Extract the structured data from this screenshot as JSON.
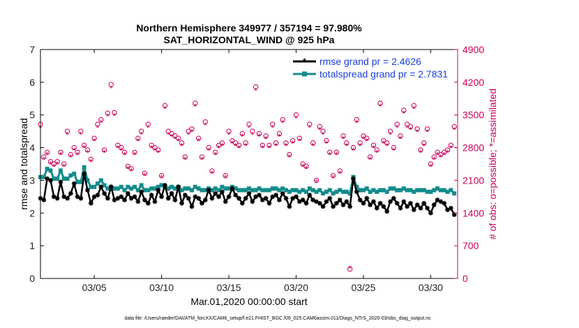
{
  "chart_data": {
    "type": "line",
    "title": "Northern Hemisphere 349977 / 357194 = 97.980%",
    "subtitle": "SAT_HORIZONTAL_WIND @ 925 hPa",
    "xlabel": "Mar.01,2020 00:00:00 start",
    "ylabel": "rmse and totalspread",
    "ylabel_right": "# of obs: o=possible; *=assimilated",
    "footnote": "data file: /Users/raeder/DAI/ATM_forcXX/CAM6_setup/f.e21.FHIST_BGC.f09_025.CAM6assim.011/Diags_NTrS_2020-03/obs_diag_output.nc",
    "xlim": [
      1,
      32
    ],
    "ylim": [
      0,
      7
    ],
    "ylim_right": [
      0,
      4900
    ],
    "xtick_values": [
      5,
      10,
      15,
      20,
      25,
      30
    ],
    "xtick_labels": [
      "03/05",
      "03/10",
      "03/15",
      "03/20",
      "03/25",
      "03/30"
    ],
    "ytick_labels": [
      "0",
      "1",
      "2",
      "3",
      "4",
      "5",
      "6",
      "7"
    ],
    "ytick_right_labels": [
      "0",
      "700",
      "1400",
      "2100",
      "2800",
      "3500",
      "4200",
      "4900"
    ],
    "legend_position": "top-right",
    "colors": {
      "rmse": "#000000",
      "spread": "#148c8c",
      "obs": "#c8005a",
      "legend_text": "#1a3fd6"
    },
    "series": [
      {
        "name": "rmse grand pr = 2.4626",
        "x": [
          1.0,
          1.25,
          1.5,
          1.75,
          2.0,
          2.25,
          2.5,
          2.75,
          3.0,
          3.25,
          3.5,
          3.75,
          4.0,
          4.25,
          4.5,
          4.75,
          5.0,
          5.25,
          5.5,
          5.75,
          6.0,
          6.25,
          6.5,
          6.75,
          7.0,
          7.25,
          7.5,
          7.75,
          8.0,
          8.25,
          8.5,
          8.75,
          9.0,
          9.25,
          9.5,
          9.75,
          10.0,
          10.25,
          10.5,
          10.75,
          11.0,
          11.25,
          11.5,
          11.75,
          12.0,
          12.25,
          12.5,
          12.75,
          13.0,
          13.25,
          13.5,
          13.75,
          14.0,
          14.25,
          14.5,
          14.75,
          15.0,
          15.25,
          15.5,
          15.75,
          16.0,
          16.25,
          16.5,
          16.75,
          17.0,
          17.25,
          17.5,
          17.75,
          18.0,
          18.25,
          18.5,
          18.75,
          19.0,
          19.25,
          19.5,
          19.75,
          20.0,
          20.25,
          20.5,
          20.75,
          21.0,
          21.25,
          21.5,
          21.75,
          22.0,
          22.25,
          22.5,
          22.75,
          23.0,
          23.25,
          23.5,
          23.75,
          24.0,
          24.25,
          24.5,
          24.75,
          25.0,
          25.25,
          25.5,
          25.75,
          26.0,
          26.25,
          26.5,
          26.75,
          27.0,
          27.25,
          27.5,
          27.75,
          28.0,
          28.25,
          28.5,
          28.75,
          29.0,
          29.25,
          29.5,
          29.75,
          30.0,
          30.25,
          30.5,
          30.75,
          31.0,
          31.25,
          31.5,
          31.75
        ],
        "values": [
          2.45,
          2.4,
          3.05,
          3.0,
          2.5,
          2.45,
          2.95,
          2.5,
          2.45,
          2.6,
          2.9,
          2.5,
          2.45,
          3.2,
          2.7,
          2.3,
          2.5,
          2.55,
          2.8,
          2.6,
          2.45,
          2.8,
          2.4,
          2.45,
          2.5,
          2.4,
          2.6,
          2.45,
          2.5,
          2.35,
          2.65,
          2.4,
          2.3,
          2.55,
          2.35,
          2.7,
          2.5,
          2.85,
          2.45,
          2.6,
          2.4,
          2.8,
          2.3,
          2.55,
          2.45,
          2.2,
          2.5,
          2.45,
          2.3,
          2.4,
          2.7,
          2.45,
          2.6,
          2.5,
          2.65,
          2.35,
          2.5,
          2.75,
          2.55,
          2.45,
          2.3,
          2.45,
          2.6,
          2.35,
          2.5,
          2.55,
          2.4,
          2.45,
          2.3,
          2.5,
          2.55,
          2.4,
          2.6,
          2.45,
          2.2,
          2.45,
          2.5,
          2.35,
          2.4,
          2.3,
          2.55,
          2.4,
          2.35,
          2.3,
          2.2,
          2.35,
          2.45,
          2.2,
          2.3,
          2.4,
          2.25,
          2.35,
          2.2,
          3.05,
          2.65,
          2.4,
          2.3,
          2.45,
          2.25,
          2.35,
          2.15,
          2.3,
          2.2,
          2.05,
          2.35,
          2.45,
          2.3,
          2.15,
          2.35,
          2.2,
          2.3,
          2.1,
          2.25,
          2.15,
          2.3,
          2.15,
          2.0,
          2.25,
          2.4,
          2.35,
          2.3,
          2.1,
          2.15,
          1.95
        ]
      },
      {
        "name": "totalspread grand pr = 2.7831",
        "x": [
          1.0,
          1.25,
          1.5,
          1.75,
          2.0,
          2.25,
          2.5,
          2.75,
          3.0,
          3.25,
          3.5,
          3.75,
          4.0,
          4.25,
          4.5,
          4.75,
          5.0,
          5.25,
          5.5,
          5.75,
          6.0,
          6.25,
          6.5,
          6.75,
          7.0,
          7.25,
          7.5,
          7.75,
          8.0,
          8.25,
          8.5,
          8.75,
          9.0,
          9.25,
          9.5,
          9.75,
          10.0,
          10.25,
          10.5,
          10.75,
          11.0,
          11.25,
          11.5,
          11.75,
          12.0,
          12.25,
          12.5,
          12.75,
          13.0,
          13.25,
          13.5,
          13.75,
          14.0,
          14.25,
          14.5,
          14.75,
          15.0,
          15.25,
          15.5,
          15.75,
          16.0,
          16.25,
          16.5,
          16.75,
          17.0,
          17.25,
          17.5,
          17.75,
          18.0,
          18.25,
          18.5,
          18.75,
          19.0,
          19.25,
          19.5,
          19.75,
          20.0,
          20.25,
          20.5,
          20.75,
          21.0,
          21.25,
          21.5,
          21.75,
          22.0,
          22.25,
          22.5,
          22.75,
          23.0,
          23.25,
          23.5,
          23.75,
          24.0,
          24.25,
          24.5,
          24.75,
          25.0,
          25.25,
          25.5,
          25.75,
          26.0,
          26.25,
          26.5,
          26.75,
          27.0,
          27.25,
          27.5,
          27.75,
          28.0,
          28.25,
          28.5,
          28.75,
          29.0,
          29.25,
          29.5,
          29.75,
          30.0,
          30.25,
          30.5,
          30.75,
          31.0,
          31.25,
          31.5,
          31.75
        ],
        "values": [
          3.1,
          3.1,
          3.35,
          3.3,
          3.05,
          3.05,
          3.3,
          3.05,
          3.05,
          3.15,
          3.2,
          2.95,
          2.95,
          3.4,
          3.0,
          2.8,
          2.8,
          2.9,
          3.0,
          2.85,
          2.75,
          2.8,
          2.75,
          2.75,
          2.8,
          2.7,
          2.8,
          2.75,
          2.8,
          2.7,
          2.85,
          2.7,
          2.7,
          2.75,
          2.75,
          2.8,
          2.85,
          2.8,
          2.75,
          2.8,
          2.75,
          2.8,
          2.7,
          2.75,
          2.75,
          2.7,
          2.8,
          2.75,
          2.7,
          2.7,
          2.75,
          2.7,
          2.75,
          2.7,
          2.8,
          2.75,
          2.75,
          2.8,
          2.75,
          2.7,
          2.7,
          2.7,
          2.75,
          2.7,
          2.7,
          2.75,
          2.7,
          2.7,
          2.7,
          2.75,
          2.75,
          2.7,
          2.75,
          2.7,
          2.65,
          2.7,
          2.7,
          2.65,
          2.7,
          2.65,
          2.75,
          2.7,
          2.65,
          2.7,
          2.6,
          2.65,
          2.7,
          2.6,
          2.65,
          2.7,
          2.65,
          2.65,
          2.6,
          3.1,
          2.8,
          2.7,
          2.7,
          2.75,
          2.65,
          2.7,
          2.65,
          2.7,
          2.7,
          2.65,
          2.75,
          2.75,
          2.7,
          2.7,
          2.75,
          2.7,
          2.7,
          2.65,
          2.7,
          2.7,
          2.7,
          2.65,
          2.65,
          2.7,
          2.75,
          2.7,
          2.7,
          2.65,
          2.7,
          2.6
        ]
      },
      {
        "name": "obs possible",
        "axis": "right",
        "marker": "o",
        "x": [
          1.0,
          1.25,
          1.5,
          1.75,
          2.0,
          2.25,
          2.5,
          2.75,
          3.0,
          3.25,
          3.5,
          3.75,
          4.0,
          4.25,
          4.5,
          4.75,
          5.0,
          5.25,
          5.5,
          5.75,
          6.0,
          6.25,
          6.5,
          6.75,
          7.0,
          7.25,
          7.5,
          7.75,
          8.0,
          8.25,
          8.5,
          8.75,
          9.0,
          9.25,
          9.5,
          9.75,
          10.0,
          10.25,
          10.5,
          10.75,
          11.0,
          11.25,
          11.5,
          11.75,
          12.0,
          12.25,
          12.5,
          12.75,
          13.0,
          13.25,
          13.5,
          13.75,
          14.0,
          14.25,
          14.5,
          14.75,
          15.0,
          15.25,
          15.5,
          15.75,
          16.0,
          16.25,
          16.5,
          16.75,
          17.0,
          17.25,
          17.5,
          17.75,
          18.0,
          18.25,
          18.5,
          18.75,
          19.0,
          19.25,
          19.5,
          19.75,
          20.0,
          20.25,
          20.5,
          20.75,
          21.0,
          21.25,
          21.5,
          21.75,
          22.0,
          22.25,
          22.5,
          22.75,
          23.0,
          23.25,
          23.5,
          23.75,
          24.0,
          24.25,
          24.5,
          24.75,
          25.0,
          25.25,
          25.5,
          25.75,
          26.0,
          26.25,
          26.5,
          26.75,
          27.0,
          27.25,
          27.5,
          27.75,
          28.0,
          28.25,
          28.5,
          28.75,
          29.0,
          29.25,
          29.5,
          29.75,
          30.0,
          30.25,
          30.5,
          30.75,
          31.0,
          31.25,
          31.5,
          31.75
        ],
        "values": [
          3300,
          2600,
          2700,
          2500,
          2450,
          2500,
          2700,
          2450,
          3150,
          2650,
          2800,
          2700,
          3150,
          2850,
          2750,
          2550,
          3000,
          3300,
          3400,
          2750,
          3540,
          4150,
          3550,
          2850,
          2800,
          2700,
          2400,
          2350,
          2700,
          3000,
          3150,
          2250,
          3300,
          2850,
          2800,
          2750,
          2200,
          3700,
          3150,
          3100,
          3050,
          3000,
          2900,
          2600,
          3150,
          3200,
          3750,
          3000,
          2600,
          3350,
          2800,
          2300,
          2700,
          2850,
          2900,
          2200,
          3150,
          2950,
          2900,
          2850,
          3100,
          2900,
          3300,
          3150,
          4100,
          3100,
          2850,
          3050,
          2850,
          3300,
          2900,
          3100,
          3400,
          2900,
          2650,
          2950,
          3500,
          3000,
          2450,
          2400,
          3300,
          2900,
          2100,
          3250,
          3150,
          2950,
          2700,
          2200,
          2700,
          2300,
          3050,
          2900,
          200,
          2800,
          3400,
          2900,
          3050,
          3000,
          2600,
          2850,
          2750,
          3750,
          2950,
          2900,
          3150,
          2800,
          3300,
          3050,
          3600,
          3300,
          3250,
          3700,
          3200,
          2750,
          2900,
          3200,
          2450,
          2600,
          2700,
          2650,
          2700,
          2750,
          2850,
          3250
        ]
      },
      {
        "name": "obs assimilated",
        "axis": "right",
        "marker": "*",
        "x": [
          1.0,
          1.25,
          1.5,
          1.75,
          2.0,
          2.25,
          2.5,
          2.75,
          3.0,
          3.25,
          3.5,
          3.75,
          4.0,
          4.25,
          4.5,
          4.75,
          5.0,
          5.25,
          5.5,
          5.75,
          6.0,
          6.25,
          6.5,
          6.75,
          7.0,
          7.25,
          7.5,
          7.75,
          8.0,
          8.25,
          8.5,
          8.75,
          9.0,
          9.25,
          9.5,
          9.75,
          10.0,
          10.25,
          10.5,
          10.75,
          11.0,
          11.25,
          11.5,
          11.75,
          12.0,
          12.25,
          12.5,
          12.75,
          13.0,
          13.25,
          13.5,
          13.75,
          14.0,
          14.25,
          14.5,
          14.75,
          15.0,
          15.25,
          15.5,
          15.75,
          16.0,
          16.25,
          16.5,
          16.75,
          17.0,
          17.25,
          17.5,
          17.75,
          18.0,
          18.25,
          18.5,
          18.75,
          19.0,
          19.25,
          19.5,
          19.75,
          20.0,
          20.25,
          20.5,
          20.75,
          21.0,
          21.25,
          21.5,
          21.75,
          22.0,
          22.25,
          22.5,
          22.75,
          23.0,
          23.25,
          23.5,
          23.75,
          24.0,
          24.25,
          24.5,
          24.75,
          25.0,
          25.25,
          25.5,
          25.75,
          26.0,
          26.25,
          26.5,
          26.75,
          27.0,
          27.25,
          27.5,
          27.75,
          28.0,
          28.25,
          28.5,
          28.75,
          29.0,
          29.25,
          29.5,
          29.75,
          30.0,
          30.25,
          30.5,
          30.75,
          31.0,
          31.25,
          31.5,
          31.75
        ],
        "values": [
          3230,
          2550,
          2650,
          2450,
          2400,
          2450,
          2650,
          2400,
          3080,
          2600,
          2740,
          2650,
          3080,
          2790,
          2700,
          2500,
          2940,
          3230,
          3330,
          2700,
          3470,
          4070,
          3480,
          2790,
          2740,
          2650,
          2350,
          2300,
          2650,
          2940,
          3080,
          2200,
          3230,
          2790,
          2740,
          2700,
          2160,
          3630,
          3080,
          3040,
          2990,
          2940,
          2840,
          2550,
          3080,
          3140,
          3680,
          2940,
          2550,
          3280,
          2740,
          2250,
          2650,
          2790,
          2840,
          2160,
          3080,
          2890,
          2840,
          2790,
          3040,
          2840,
          3230,
          3080,
          4020,
          3040,
          2790,
          2990,
          2790,
          3230,
          2840,
          3040,
          3330,
          2840,
          2600,
          2890,
          3430,
          2940,
          2400,
          2350,
          3230,
          2840,
          2060,
          3180,
          3080,
          2890,
          2650,
          2160,
          2650,
          2250,
          2990,
          2840,
          220,
          2740,
          3330,
          2840,
          2990,
          2940,
          2550,
          2790,
          2700,
          3680,
          2890,
          2840,
          3080,
          2740,
          3230,
          2990,
          3530,
          3230,
          3180,
          3630,
          3140,
          2700,
          2840,
          3140,
          2400,
          2550,
          2650,
          2600,
          2650,
          2700,
          2790,
          3180
        ]
      }
    ]
  }
}
